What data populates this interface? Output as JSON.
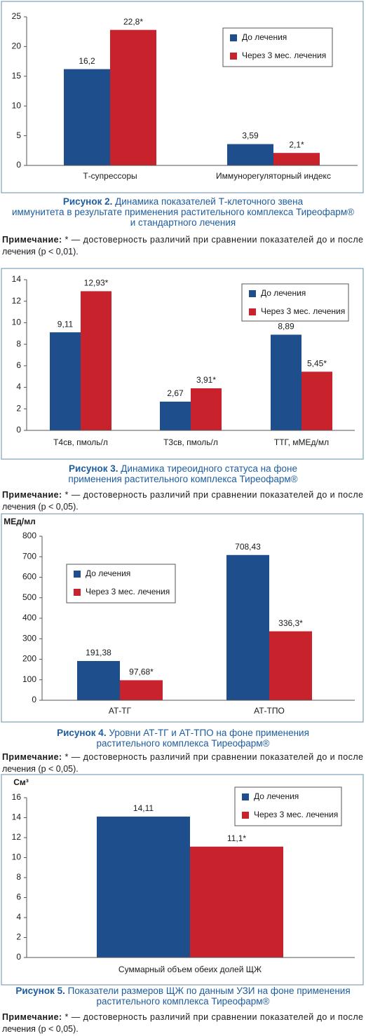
{
  "chart_data": [
    {
      "type": "bar",
      "categories": [
        "Т-супрессоры",
        "Иммунорегуляторный индекс"
      ],
      "series": [
        {
          "name": "До лечения",
          "color": "#1f4e8c",
          "values": [
            16.2,
            3.59
          ],
          "value_labels": [
            "16,2",
            "3,59"
          ]
        },
        {
          "name": "Через 3 мес. лечения",
          "color": "#c8232c",
          "values": [
            22.8,
            2.1
          ],
          "value_labels": [
            "22,8*",
            "2,1*"
          ]
        }
      ],
      "ylim": [
        0,
        25
      ],
      "yticks": [
        0,
        5,
        10,
        15,
        20,
        25
      ],
      "grid": false
    },
    {
      "type": "bar",
      "categories": [
        "Т4св, пмоль/л",
        "Т3св, пмоль/л",
        "ТТГ, мМЕд/мл"
      ],
      "series": [
        {
          "name": "До лечения",
          "color": "#1f4e8c",
          "values": [
            9.11,
            2.67,
            8.89
          ],
          "value_labels": [
            "9,11",
            "2,67",
            "8,89"
          ]
        },
        {
          "name": "Через 3 мес. лечения",
          "color": "#c8232c",
          "values": [
            12.93,
            3.91,
            5.45
          ],
          "value_labels": [
            "12,93*",
            "3,91*",
            "5,45*"
          ]
        }
      ],
      "ylim": [
        0,
        14
      ],
      "yticks": [
        0,
        2,
        4,
        6,
        8,
        10,
        12,
        14
      ],
      "grid": false
    },
    {
      "type": "bar",
      "y_label": "МЕд/мл",
      "categories": [
        "АТ-ТГ",
        "АТ-ТПО"
      ],
      "series": [
        {
          "name": "До лечения",
          "color": "#1f4e8c",
          "values": [
            191.38,
            708.43
          ],
          "value_labels": [
            "191,38",
            "708,43"
          ]
        },
        {
          "name": "Через 3 мес. лечения",
          "color": "#c8232c",
          "values": [
            97.68,
            336.3
          ],
          "value_labels": [
            "97,68*",
            "336,3*"
          ]
        }
      ],
      "ylim": [
        0,
        800
      ],
      "yticks": [
        0,
        100,
        200,
        300,
        400,
        500,
        600,
        700,
        800
      ],
      "grid": false
    },
    {
      "type": "bar",
      "y_label": "См³",
      "categories": [
        "Суммарный объем обеих долей ЩЖ"
      ],
      "series": [
        {
          "name": "До лечения",
          "color": "#1f4e8c",
          "values": [
            14.11
          ],
          "value_labels": [
            "14,11"
          ]
        },
        {
          "name": "Через 3 мес. лечения",
          "color": "#c8232c",
          "values": [
            11.1
          ],
          "value_labels": [
            "11,1*"
          ]
        }
      ],
      "ylim": [
        0,
        16
      ],
      "yticks": [
        0,
        2,
        4,
        6,
        8,
        10,
        12,
        14,
        16
      ],
      "grid": false
    }
  ],
  "figures": [
    {
      "caption_label": "Рисунок 2.",
      "caption_lines": [
        "Динамика показателей Т-клеточного звена",
        "иммунитета в результате применения растительного комплекса Тиреофарм®",
        "и стандартного лечения"
      ],
      "note_label": "Примечание:",
      "note_lines": [
        "* — достоверность различий при сравнении показателей до и после",
        "лечения (p < 0,01)."
      ]
    },
    {
      "caption_label": "Рисунок 3.",
      "caption_lines": [
        "Динамика тиреоидного статуса на фоне",
        "применения растительного комплекса Тиреофарм®"
      ],
      "note_label": "Примечание:",
      "note_lines": [
        "* — достоверность различий при сравнении показателей до и после",
        "лечения (p < 0,05)."
      ]
    },
    {
      "caption_label": "Рисунок 4.",
      "caption_lines": [
        "Уровни АТ-ТГ и АТ-ТПО на фоне применения",
        "растительного комплекса Тиреофарм®"
      ],
      "note_label": "Примечание:",
      "note_lines": [
        "* — достоверность различий при сравнении показателей до и после",
        "лечения (p < 0,05)."
      ]
    },
    {
      "caption_label": "Рисунок 5.",
      "caption_lines": [
        "Показатели размеров ЩЖ по данным УЗИ на фоне применения",
        "растительного комплекса Тиреофарм®"
      ],
      "note_label": "Примечание:",
      "note_lines": [
        "* — достоверность различий при сравнении показателей до и после",
        "лечения (p < 0,05)."
      ]
    }
  ]
}
